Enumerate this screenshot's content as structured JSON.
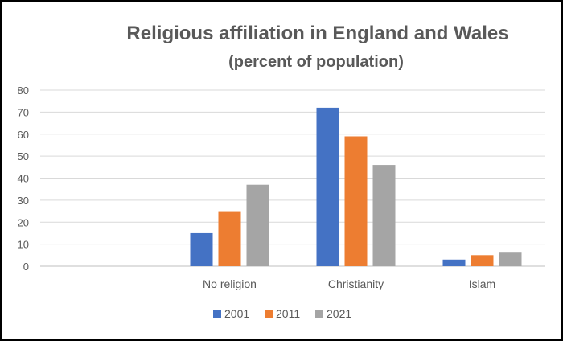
{
  "chart_data": {
    "type": "bar",
    "title": "Religious affiliation in England and Wales",
    "subtitle": "(percent of population)",
    "categories": [
      "",
      "No religion",
      "Christianity",
      "Islam"
    ],
    "series": [
      {
        "name": "2001",
        "color": "#4472C4",
        "values": [
          null,
          15,
          72,
          3
        ]
      },
      {
        "name": "2011",
        "color": "#ED7D31",
        "values": [
          null,
          25,
          59,
          5
        ]
      },
      {
        "name": "2021",
        "color": "#A5A5A5",
        "values": [
          null,
          37,
          46,
          6.5
        ]
      }
    ],
    "yticks": [
      "0",
      "10",
      "20",
      "30",
      "40",
      "50",
      "60",
      "70",
      "80"
    ],
    "ylim": [
      0,
      80
    ],
    "grid": true,
    "legend_position": "bottom"
  }
}
